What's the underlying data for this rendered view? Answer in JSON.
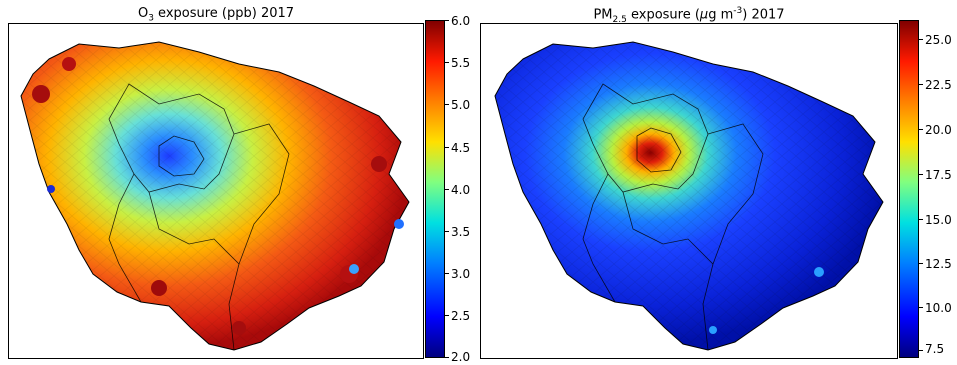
{
  "panels": [
    {
      "title_main": "O",
      "title_sub": "3",
      "title_rest": " exposure (ppb)  2017",
      "colorbar": {
        "min": 2.0,
        "max": 6.0,
        "ticks": [
          "6.0",
          "5.5",
          "5.0",
          "4.5",
          "4.0",
          "3.5",
          "3.0",
          "2.5",
          "2.0"
        ]
      },
      "map_colors": {
        "center": "#2a6cff",
        "inner": "#a8f06a",
        "outer": "#f24a17",
        "edge": "#b20d0d"
      }
    },
    {
      "title_main": "PM",
      "title_sub": "2.5",
      "title_rest": " exposure (",
      "title_unit_mu": "μ",
      "title_unit_after": "g m",
      "title_sup": "-3",
      "title_tail": ")  2017",
      "colorbar": {
        "min": 7.5,
        "max": 25.0,
        "ticks": [
          "25.0",
          "22.5",
          "20.0",
          "17.5",
          "15.0",
          "12.5",
          "10.0",
          "7.5"
        ]
      },
      "map_colors": {
        "center": "#c21313",
        "inner": "#ffb400",
        "ring": "#39d6c0",
        "outer": "#1c3dff",
        "edge": "#0b1cd8"
      }
    }
  ]
}
